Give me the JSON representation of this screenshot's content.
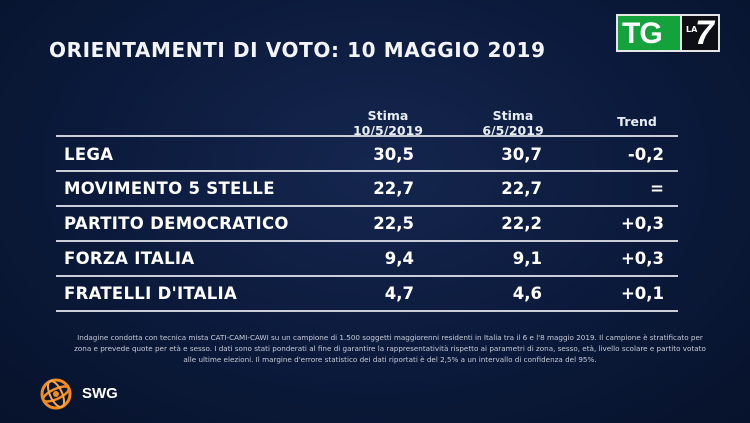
{
  "title": "ORIENTAMENTI DI VOTO: 10 MAGGIO 2019",
  "broadcaster": {
    "tg": "TG",
    "la": "LA",
    "seven": "7",
    "color": "#14a23d"
  },
  "columns": {
    "c1_line1": "Stima",
    "c1_line2": "10/5/2019",
    "c2_line1": "Stima",
    "c2_line2": "6/5/2019",
    "c3": "Trend"
  },
  "rows": [
    {
      "party": "LEGA",
      "stima_10": "30,5",
      "stima_6": "30,7",
      "trend": "-0,2"
    },
    {
      "party": "MOVIMENTO 5 STELLE",
      "stima_10": "22,7",
      "stima_6": "22,7",
      "trend": "="
    },
    {
      "party": "PARTITO DEMOCRATICO",
      "stima_10": "22,5",
      "stima_6": "22,2",
      "trend": "+0,3"
    },
    {
      "party": "FORZA ITALIA",
      "stima_10": "9,4",
      "stima_6": "9,1",
      "trend": "+0,3"
    },
    {
      "party": "FRATELLI D'ITALIA",
      "stima_10": "4,7",
      "stima_6": "4,6",
      "trend": "+0,1"
    }
  ],
  "footnote": "Indagine condotta con tecnica mista CATI-CAMI-CAWI su un campione di 1.500 soggetti maggiorenni residenti in Italia tra il 6 e l'8 maggio 2019. Il campione è stratificato per zona e prevede quote per età e sesso. I dati sono stati ponderati al fine di garantire la rappresentatività rispetto ai parametri di zona, sesso, età, livello scolare e partito votato alle ultime elezioni. Il margine d'errore statistico dei dati riportati è del 2,5% a un intervallo di confidenza del 95%.",
  "source_logo": {
    "name": "SWG",
    "color": "#f28c1e"
  }
}
